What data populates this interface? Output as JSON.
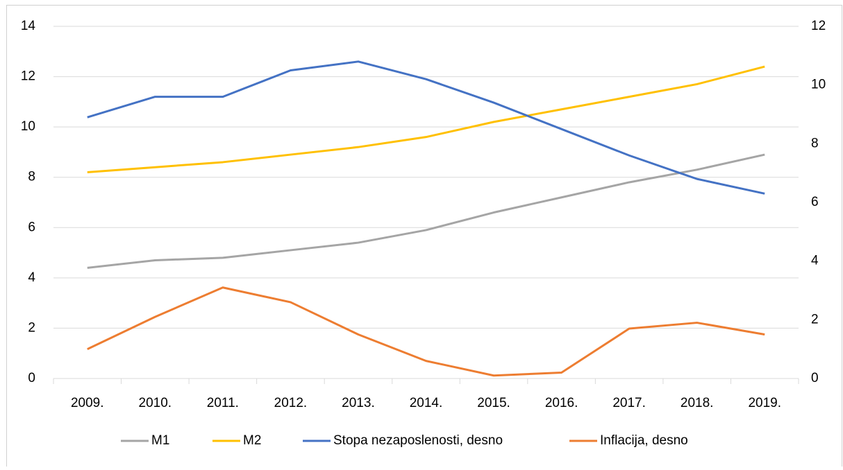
{
  "chart_data": {
    "type": "line",
    "categories": [
      "2009.",
      "2010.",
      "2011.",
      "2012.",
      "2013.",
      "2014.",
      "2015.",
      "2016.",
      "2017.",
      "2018.",
      "2019."
    ],
    "series": [
      {
        "name": "M1",
        "color": "#a5a5a5",
        "values": [
          4.4,
          4.7,
          4.8,
          5.1,
          5.4,
          5.9,
          6.6,
          7.2,
          7.8,
          8.3,
          8.9
        ]
      },
      {
        "name": "M2",
        "color": "#ffc000",
        "values": [
          8.2,
          8.4,
          8.6,
          8.9,
          9.2,
          9.6,
          10.2,
          10.7,
          11.2,
          11.7,
          12.4
        ]
      },
      {
        "name": "Stopa nezaposlenosti, desno",
        "color": "#4472c4",
        "axis": "y2",
        "values": [
          8.9,
          9.6,
          9.6,
          10.5,
          10.8,
          10.2,
          9.4,
          8.5,
          7.6,
          6.8,
          6.3
        ]
      },
      {
        "name": "Inflacija, desno",
        "color": "#ed7d31",
        "axis": "y2",
        "values": [
          1.0,
          2.1,
          3.1,
          2.6,
          1.5,
          0.6,
          0.1,
          0.2,
          1.7,
          1.9,
          1.5
        ]
      }
    ],
    "ylim": [
      0,
      14
    ],
    "yticks": [
      0,
      2,
      4,
      6,
      8,
      10,
      12,
      14
    ],
    "y2lim": [
      0,
      12
    ],
    "y2ticks": [
      0,
      2,
      4,
      6,
      8,
      10,
      12
    ],
    "grid": true,
    "legend": "bottom"
  }
}
